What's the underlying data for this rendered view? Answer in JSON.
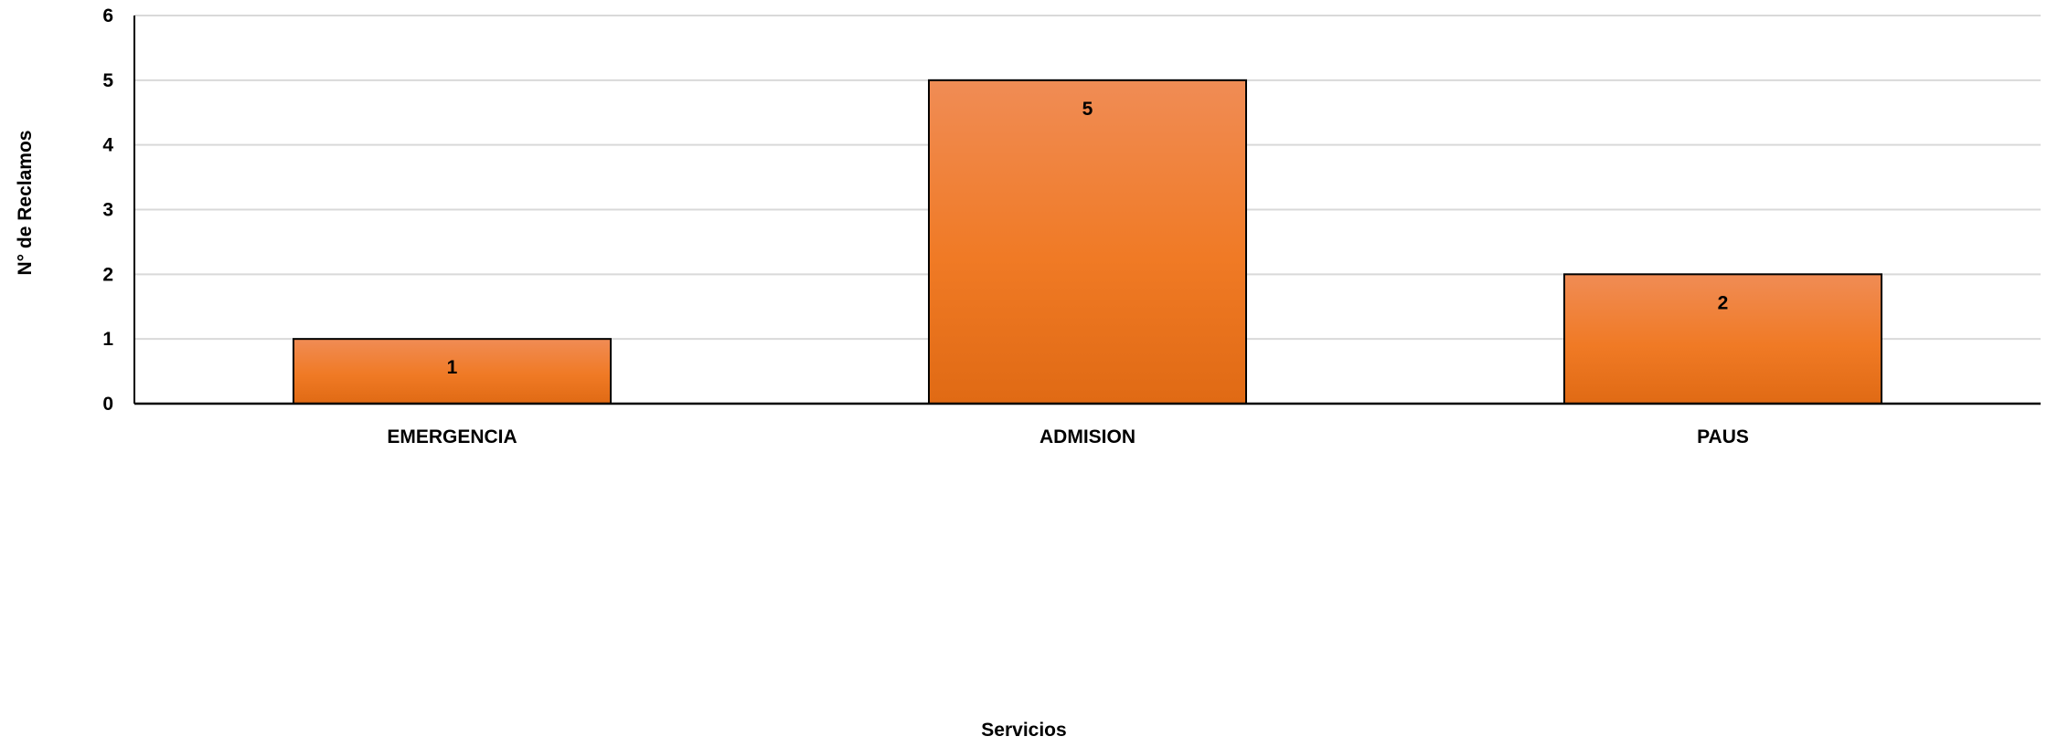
{
  "chart_data": {
    "type": "bar",
    "categories": [
      "EMERGENCIA",
      "ADMISION",
      "PAUS"
    ],
    "series": [
      {
        "values": [
          1,
          5,
          2
        ]
      }
    ],
    "data_labels": [
      "1",
      "5",
      "2"
    ],
    "xlabel": "Servicios",
    "ylabel": "N° de Reclamos",
    "ylim": [
      0,
      6
    ],
    "yticks": [
      0,
      1,
      2,
      3,
      4,
      5,
      6
    ],
    "ytick_labels": [
      "0",
      "1",
      "2",
      "3",
      "4",
      "5",
      "6"
    ],
    "grid": true,
    "legend": "none",
    "colors": {
      "bar_top": "#F08C55",
      "bar_mid": "#F07A25",
      "bar_bottom": "#E06A14",
      "bar_border": "#000000",
      "grid": "#D9D9D9",
      "axis": "#000000"
    }
  }
}
